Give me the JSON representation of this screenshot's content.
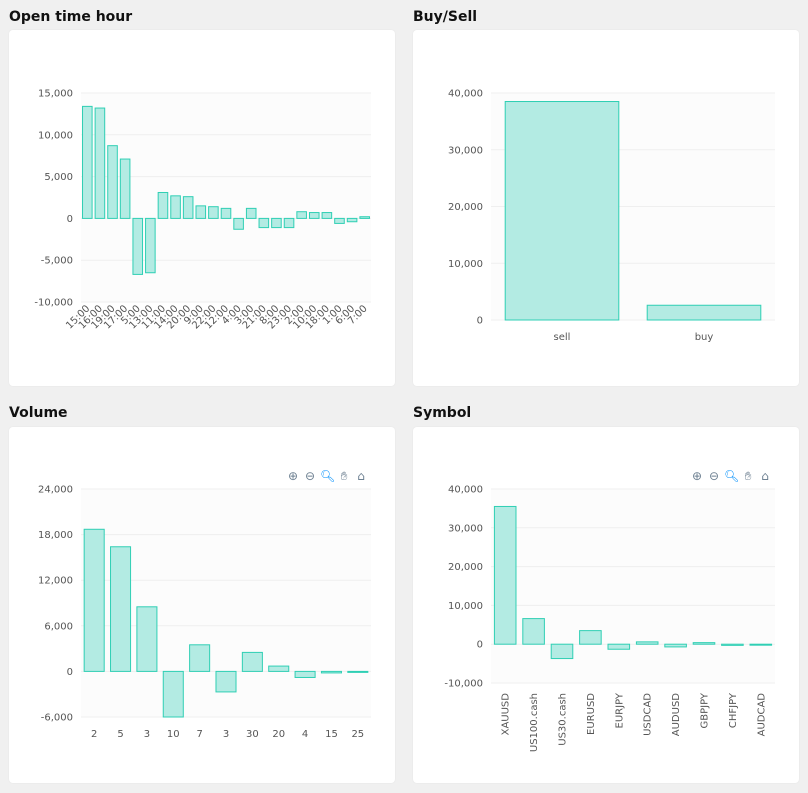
{
  "panels": [
    {
      "title": "Open time hour",
      "toolbar": false,
      "chart_data": {
        "type": "bar",
        "categories": [
          "15:00",
          "16:00",
          "19:00",
          "17:00",
          "5:00",
          "13:00",
          "11:00",
          "14:00",
          "20:00",
          "9:00",
          "22:00",
          "12:00",
          "4:00",
          "3:00",
          "21:00",
          "8:00",
          "23:00",
          "2:00",
          "10:00",
          "18:00",
          "1:00",
          "6:00",
          "7:00"
        ],
        "values": [
          13400,
          13200,
          8700,
          7100,
          -6700,
          -6500,
          3100,
          2700,
          2600,
          1500,
          1400,
          1200,
          -1300,
          1200,
          -1100,
          -1100,
          -1100,
          800,
          700,
          700,
          -600,
          -400,
          200
        ],
        "yticks": [
          15000,
          10000,
          5000,
          0,
          -5000,
          -10000
        ],
        "ytick_labels": [
          "15,000",
          "10,000",
          "5,000",
          "0",
          "-5,000",
          "-10,000"
        ],
        "ylim": [
          -10000,
          15000
        ],
        "xtick_rotation": -45,
        "color": "#b3ebe3",
        "stroke": "#2fcfb4"
      }
    },
    {
      "title": "Buy/Sell",
      "toolbar": false,
      "chart_data": {
        "type": "bar",
        "categories": [
          "sell",
          "buy"
        ],
        "values": [
          38500,
          2600
        ],
        "yticks": [
          40000,
          30000,
          20000,
          10000,
          0
        ],
        "ytick_labels": [
          "40,000",
          "30,000",
          "20,000",
          "10,000",
          "0"
        ],
        "ylim": [
          0,
          40000
        ],
        "xtick_rotation": 0,
        "color": "#b3ebe3",
        "stroke": "#2fcfb4"
      }
    },
    {
      "title": "Volume",
      "toolbar": true,
      "chart_data": {
        "type": "bar",
        "categories": [
          "2",
          "5",
          "3",
          "10",
          "7",
          "3",
          "30",
          "20",
          "4",
          "15",
          "25"
        ],
        "values": [
          18700,
          16400,
          8500,
          -6000,
          3500,
          -2700,
          2500,
          700,
          -800,
          -200,
          -100
        ],
        "yticks": [
          24000,
          18000,
          12000,
          6000,
          0,
          -6000
        ],
        "ytick_labels": [
          "24,000",
          "18,000",
          "12,000",
          "6,000",
          "0",
          "-6,000"
        ],
        "ylim": [
          -6000,
          24000
        ],
        "xtick_rotation": 0,
        "color": "#b3ebe3",
        "stroke": "#2fcfb4"
      }
    },
    {
      "title": "Symbol",
      "toolbar": true,
      "chart_data": {
        "type": "bar",
        "categories": [
          "XAUUSD",
          "US100.cash",
          "US30.cash",
          "EURUSD",
          "EURJPY",
          "USDCAD",
          "AUDUSD",
          "GBPJPY",
          "CHFJPY",
          "AUDCAD"
        ],
        "values": [
          35500,
          6600,
          -3700,
          3500,
          -1300,
          600,
          -700,
          400,
          -300,
          -200
        ],
        "yticks": [
          40000,
          30000,
          20000,
          10000,
          0,
          -10000
        ],
        "ytick_labels": [
          "40,000",
          "30,000",
          "20,000",
          "10,000",
          "0",
          "-10,000"
        ],
        "ylim": [
          -10000,
          40000
        ],
        "xtick_rotation": -90,
        "color": "#b3ebe3",
        "stroke": "#2fcfb4"
      }
    }
  ],
  "toolbar_icons": [
    "zoom-in-icon",
    "zoom-out-icon",
    "selection-zoom-icon",
    "pan-hand-icon",
    "home-reset-icon"
  ]
}
